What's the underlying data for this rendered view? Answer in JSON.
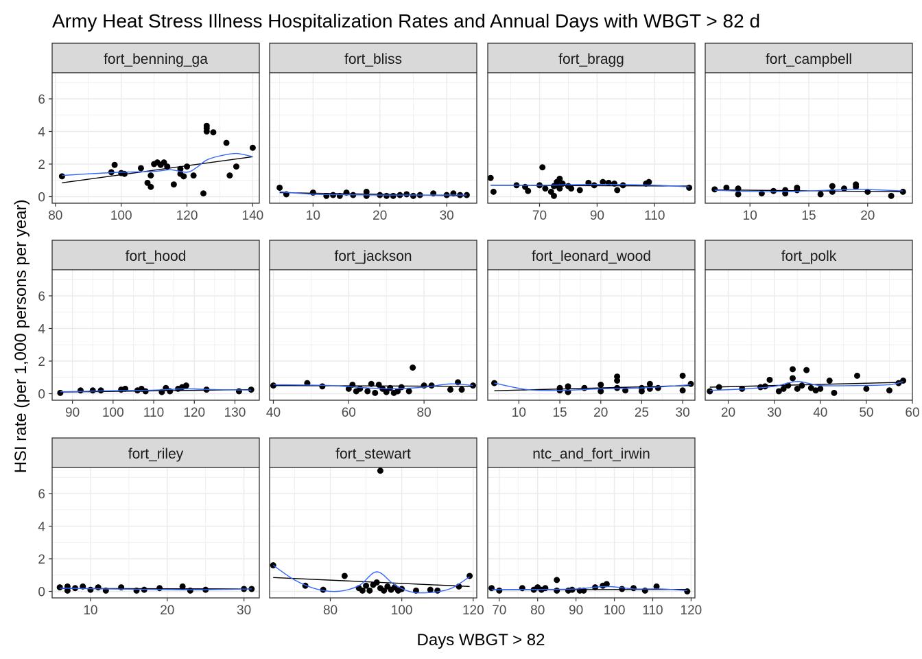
{
  "title": "Army Heat Stress Illness Hospitalization Rates and Annual Days with WBGT > 82 d",
  "xlabel": "Days WBGT > 82",
  "ylabel": "HSI rate (per 1,000 persons per year)",
  "colors": {
    "strip_fill": "#d9d9d9",
    "panel_border": "#333333",
    "grid": "#ebebeb",
    "points": "#000000",
    "linear_fit": "#000000",
    "smooth_fit": "#3366ff",
    "axis_text": "#4d4d4d"
  },
  "chart_data": {
    "type": "scatter",
    "layout": "faceted 4x3, shared y axis, free x axis",
    "grid": true,
    "ylim": [
      -0.4,
      7.6
    ],
    "yticks": [
      0,
      2,
      4,
      6
    ],
    "fits": [
      "linear",
      "loess"
    ],
    "facets": [
      {
        "name": "fort_benning_ga",
        "xlim": [
          79,
          142
        ],
        "xticks": [
          80,
          100,
          120,
          140
        ],
        "x": [
          82,
          97,
          98,
          100,
          101,
          106,
          108,
          109,
          109,
          110,
          111,
          112,
          113,
          114,
          116,
          118,
          118,
          119,
          120,
          122,
          125,
          126,
          126,
          126,
          128,
          132,
          133,
          135,
          140
        ],
        "y": [
          1.25,
          1.5,
          1.95,
          1.45,
          1.4,
          1.75,
          0.85,
          0.6,
          1.3,
          2.0,
          2.1,
          1.95,
          2.1,
          1.85,
          0.75,
          1.7,
          1.4,
          1.25,
          1.85,
          1.3,
          0.2,
          4.35,
          4.2,
          4.0,
          3.95,
          3.3,
          1.3,
          1.85,
          3.0
        ],
        "linear": {
          "x": [
            82,
            140
          ],
          "y": [
            0.85,
            2.45
          ]
        },
        "smooth": {
          "x": [
            82,
            90,
            100,
            110,
            115,
            120,
            123,
            126,
            130,
            135,
            140
          ],
          "y": [
            1.3,
            1.4,
            1.5,
            1.55,
            1.65,
            1.5,
            1.8,
            2.25,
            2.5,
            2.65,
            2.45
          ]
        }
      },
      {
        "name": "fort_bliss",
        "xlim": [
          3.5,
          34.5
        ],
        "xticks": [
          10,
          20,
          30
        ],
        "x": [
          5,
          6,
          10,
          12,
          13,
          14,
          15,
          16,
          18,
          18,
          20,
          21,
          22,
          23,
          24,
          25,
          26,
          28,
          30,
          31,
          32,
          33
        ],
        "y": [
          0.55,
          0.15,
          0.25,
          0.05,
          0.1,
          0.05,
          0.25,
          0.1,
          0.3,
          0.05,
          0.1,
          0.05,
          0.05,
          0.1,
          0.15,
          0.05,
          0.1,
          0.2,
          0.1,
          0.2,
          0.1,
          0.1
        ],
        "linear": {
          "x": [
            5,
            33
          ],
          "y": [
            0.25,
            0.05
          ]
        },
        "smooth": {
          "x": [
            5,
            10,
            15,
            20,
            25,
            33
          ],
          "y": [
            0.3,
            0.15,
            0.12,
            0.1,
            0.1,
            0.1
          ]
        }
      },
      {
        "name": "fort_bragg",
        "xlim": [
          52,
          124
        ],
        "xticks": [
          70,
          90,
          110
        ],
        "x": [
          53,
          54,
          62,
          65,
          66,
          70,
          71,
          72,
          74,
          75,
          75,
          76,
          76,
          77,
          77,
          78,
          80,
          81,
          84,
          87,
          89,
          92,
          94,
          96,
          97,
          99,
          107,
          108,
          122
        ],
        "y": [
          1.15,
          0.3,
          0.7,
          0.6,
          0.35,
          0.7,
          1.8,
          0.5,
          0.3,
          0.65,
          0.05,
          0.9,
          0.7,
          1.1,
          0.5,
          0.8,
          0.65,
          0.5,
          0.4,
          0.85,
          0.7,
          0.9,
          0.85,
          0.8,
          0.4,
          0.7,
          0.8,
          0.9,
          0.55
        ],
        "linear": {
          "x": [
            53,
            122
          ],
          "y": [
            0.7,
            0.65
          ]
        },
        "smooth": {
          "x": [
            53,
            70,
            90,
            110,
            122
          ],
          "y": [
            0.7,
            0.7,
            0.75,
            0.7,
            0.6
          ]
        }
      },
      {
        "name": "fort_campbell",
        "xlim": [
          6.2,
          23.8
        ],
        "xticks": [
          10,
          15,
          20
        ],
        "x": [
          7,
          8,
          9,
          9,
          11,
          12,
          13,
          13,
          14,
          14,
          16,
          17,
          17,
          18,
          19,
          19,
          20,
          22,
          23
        ],
        "y": [
          0.45,
          0.55,
          0.5,
          0.15,
          0.2,
          0.35,
          0.4,
          0.2,
          0.55,
          0.4,
          0.15,
          0.65,
          0.3,
          0.5,
          0.75,
          0.6,
          0.3,
          0.05,
          0.3
        ],
        "linear": {
          "x": [
            7,
            23
          ],
          "y": [
            0.42,
            0.3
          ]
        },
        "smooth": {
          "x": [
            7,
            11,
            15,
            19,
            23
          ],
          "y": [
            0.4,
            0.3,
            0.35,
            0.45,
            0.35
          ]
        }
      },
      {
        "name": "fort_hood",
        "xlim": [
          85,
          136
        ],
        "xticks": [
          90,
          100,
          110,
          120,
          130
        ],
        "x": [
          87,
          92,
          95,
          97,
          102,
          103,
          106,
          107,
          108,
          112,
          113,
          114,
          116,
          117,
          118,
          123,
          131,
          134
        ],
        "y": [
          0.05,
          0.2,
          0.2,
          0.2,
          0.25,
          0.3,
          0.2,
          0.3,
          0.15,
          0.1,
          0.35,
          0.15,
          0.3,
          0.4,
          0.5,
          0.25,
          0.15,
          0.25
        ],
        "linear": {
          "x": [
            87,
            134
          ],
          "y": [
            0.1,
            0.25
          ]
        },
        "smooth": {
          "x": [
            87,
            100,
            110,
            118,
            125,
            134
          ],
          "y": [
            0.12,
            0.18,
            0.22,
            0.3,
            0.25,
            0.22
          ]
        }
      },
      {
        "name": "fort_jackson",
        "xlim": [
          39,
          94
        ],
        "xticks": [
          40,
          60,
          80
        ],
        "x": [
          40,
          49,
          53,
          60,
          61,
          62,
          63,
          65,
          66,
          67,
          68,
          69,
          70,
          71,
          72,
          73,
          74,
          76,
          77,
          80,
          82,
          87,
          89,
          90,
          93
        ],
        "y": [
          0.5,
          0.65,
          0.45,
          0.3,
          0.55,
          0.15,
          0.3,
          0.15,
          0.6,
          0.05,
          0.55,
          0.3,
          0.1,
          0.35,
          0.05,
          0.15,
          0.4,
          0.15,
          1.6,
          0.5,
          0.5,
          0.25,
          0.7,
          0.25,
          0.5
        ],
        "linear": {
          "x": [
            40,
            93
          ],
          "y": [
            0.5,
            0.45
          ]
        },
        "smooth": {
          "x": [
            40,
            55,
            65,
            72,
            80,
            87,
            93
          ],
          "y": [
            0.55,
            0.5,
            0.35,
            0.3,
            0.4,
            0.6,
            0.5
          ]
        }
      },
      {
        "name": "fort_leonard_wood",
        "xlim": [
          6.2,
          31.5
        ],
        "xticks": [
          10,
          15,
          20,
          25,
          30
        ],
        "x": [
          7,
          15,
          15,
          16,
          16,
          18,
          20,
          20,
          22,
          22,
          22,
          23,
          25,
          25,
          26,
          26,
          27,
          30,
          30,
          31
        ],
        "y": [
          0.65,
          0.2,
          0.35,
          0.45,
          0.1,
          0.35,
          0.55,
          0.15,
          0.8,
          1.05,
          0.35,
          0.2,
          0.35,
          0.15,
          0.6,
          0.3,
          0.35,
          1.1,
          0.2,
          0.6
        ],
        "linear": {
          "x": [
            7,
            31
          ],
          "y": [
            0.18,
            0.5
          ]
        },
        "smooth": {
          "x": [
            7,
            11,
            15,
            20,
            25,
            31
          ],
          "y": [
            0.65,
            0.25,
            0.2,
            0.3,
            0.35,
            0.55
          ]
        }
      },
      {
        "name": "fort_polk",
        "xlim": [
          15,
          60
        ],
        "xticks": [
          20,
          30,
          40,
          50,
          60
        ],
        "x": [
          16,
          18,
          23,
          27,
          28,
          29,
          31,
          32,
          33,
          34,
          34,
          35,
          36,
          37,
          38,
          39,
          40,
          42,
          43,
          48,
          50,
          55,
          57,
          58
        ],
        "y": [
          0.15,
          0.4,
          0.3,
          0.4,
          0.45,
          0.85,
          0.15,
          0.3,
          0.5,
          1.5,
          0.95,
          0.3,
          0.5,
          1.45,
          0.35,
          0.2,
          0.3,
          0.8,
          0.05,
          1.1,
          0.3,
          0.2,
          0.65,
          0.8
        ],
        "linear": {
          "x": [
            16,
            58
          ],
          "y": [
            0.4,
            0.7
          ]
        },
        "smooth": {
          "x": [
            16,
            24,
            30,
            35,
            40,
            48,
            55,
            58
          ],
          "y": [
            0.2,
            0.3,
            0.45,
            0.75,
            0.5,
            0.5,
            0.55,
            0.75
          ]
        }
      },
      {
        "name": "fort_riley",
        "xlim": [
          5,
          32
        ],
        "xticks": [
          10,
          20,
          30
        ],
        "x": [
          6,
          7,
          7,
          8,
          9,
          10,
          11,
          12,
          14,
          16,
          17,
          19,
          22,
          23,
          25,
          30,
          31
        ],
        "y": [
          0.25,
          0.3,
          0.05,
          0.2,
          0.3,
          0.1,
          0.25,
          0.05,
          0.25,
          0.05,
          0.1,
          0.2,
          0.3,
          0.05,
          0.1,
          0.15,
          0.15
        ],
        "linear": {
          "x": [
            6,
            31
          ],
          "y": [
            0.18,
            0.15
          ]
        },
        "smooth": {
          "x": [
            6,
            12,
            18,
            24,
            31
          ],
          "y": [
            0.2,
            0.15,
            0.12,
            0.1,
            0.15
          ]
        }
      },
      {
        "name": "fort_stewart",
        "xlim": [
          63,
          121
        ],
        "xticks": [
          80,
          100,
          120
        ],
        "x": [
          64,
          73,
          78,
          84,
          88,
          89,
          90,
          91,
          92,
          93,
          94,
          94,
          95,
          96,
          97,
          98,
          99,
          100,
          104,
          108,
          110,
          116,
          119
        ],
        "y": [
          1.6,
          0.35,
          0.1,
          0.95,
          0.2,
          0.05,
          0.35,
          0.05,
          0.4,
          0.55,
          7.4,
          0.2,
          0.05,
          0.3,
          0.1,
          0.25,
          0.05,
          0.15,
          0.05,
          0.1,
          0.05,
          0.3,
          0.95
        ],
        "linear": {
          "x": [
            64,
            119
          ],
          "y": [
            0.85,
            0.3
          ]
        },
        "smooth": {
          "x": [
            64,
            70,
            76,
            82,
            88,
            93,
            98,
            103,
            109,
            114,
            119
          ],
          "y": [
            1.6,
            0.7,
            0.15,
            0.0,
            0.35,
            1.2,
            0.4,
            -0.05,
            -0.05,
            0.2,
            0.9
          ]
        }
      },
      {
        "name": "ntc_and_fort_irwin",
        "xlim": [
          67,
          121
        ],
        "xticks": [
          70,
          80,
          90,
          100,
          110,
          120
        ],
        "x": [
          68,
          70,
          76,
          79,
          80,
          81,
          82,
          85,
          85,
          88,
          89,
          91,
          92,
          95,
          97,
          98,
          102,
          105,
          108,
          111,
          119
        ],
        "y": [
          0.2,
          0.05,
          0.2,
          0.1,
          0.25,
          0.1,
          0.2,
          0.7,
          0.05,
          0.05,
          0.1,
          0.05,
          0.05,
          0.25,
          0.35,
          0.45,
          0.15,
          0.2,
          0.05,
          0.3,
          0.0
        ],
        "linear": {
          "x": [
            68,
            119
          ],
          "y": [
            0.1,
            0.12
          ]
        },
        "smooth": {
          "x": [
            68,
            80,
            90,
            98,
            105,
            112,
            119
          ],
          "y": [
            0.1,
            0.12,
            0.15,
            0.3,
            0.15,
            0.15,
            0.05
          ]
        }
      }
    ]
  }
}
